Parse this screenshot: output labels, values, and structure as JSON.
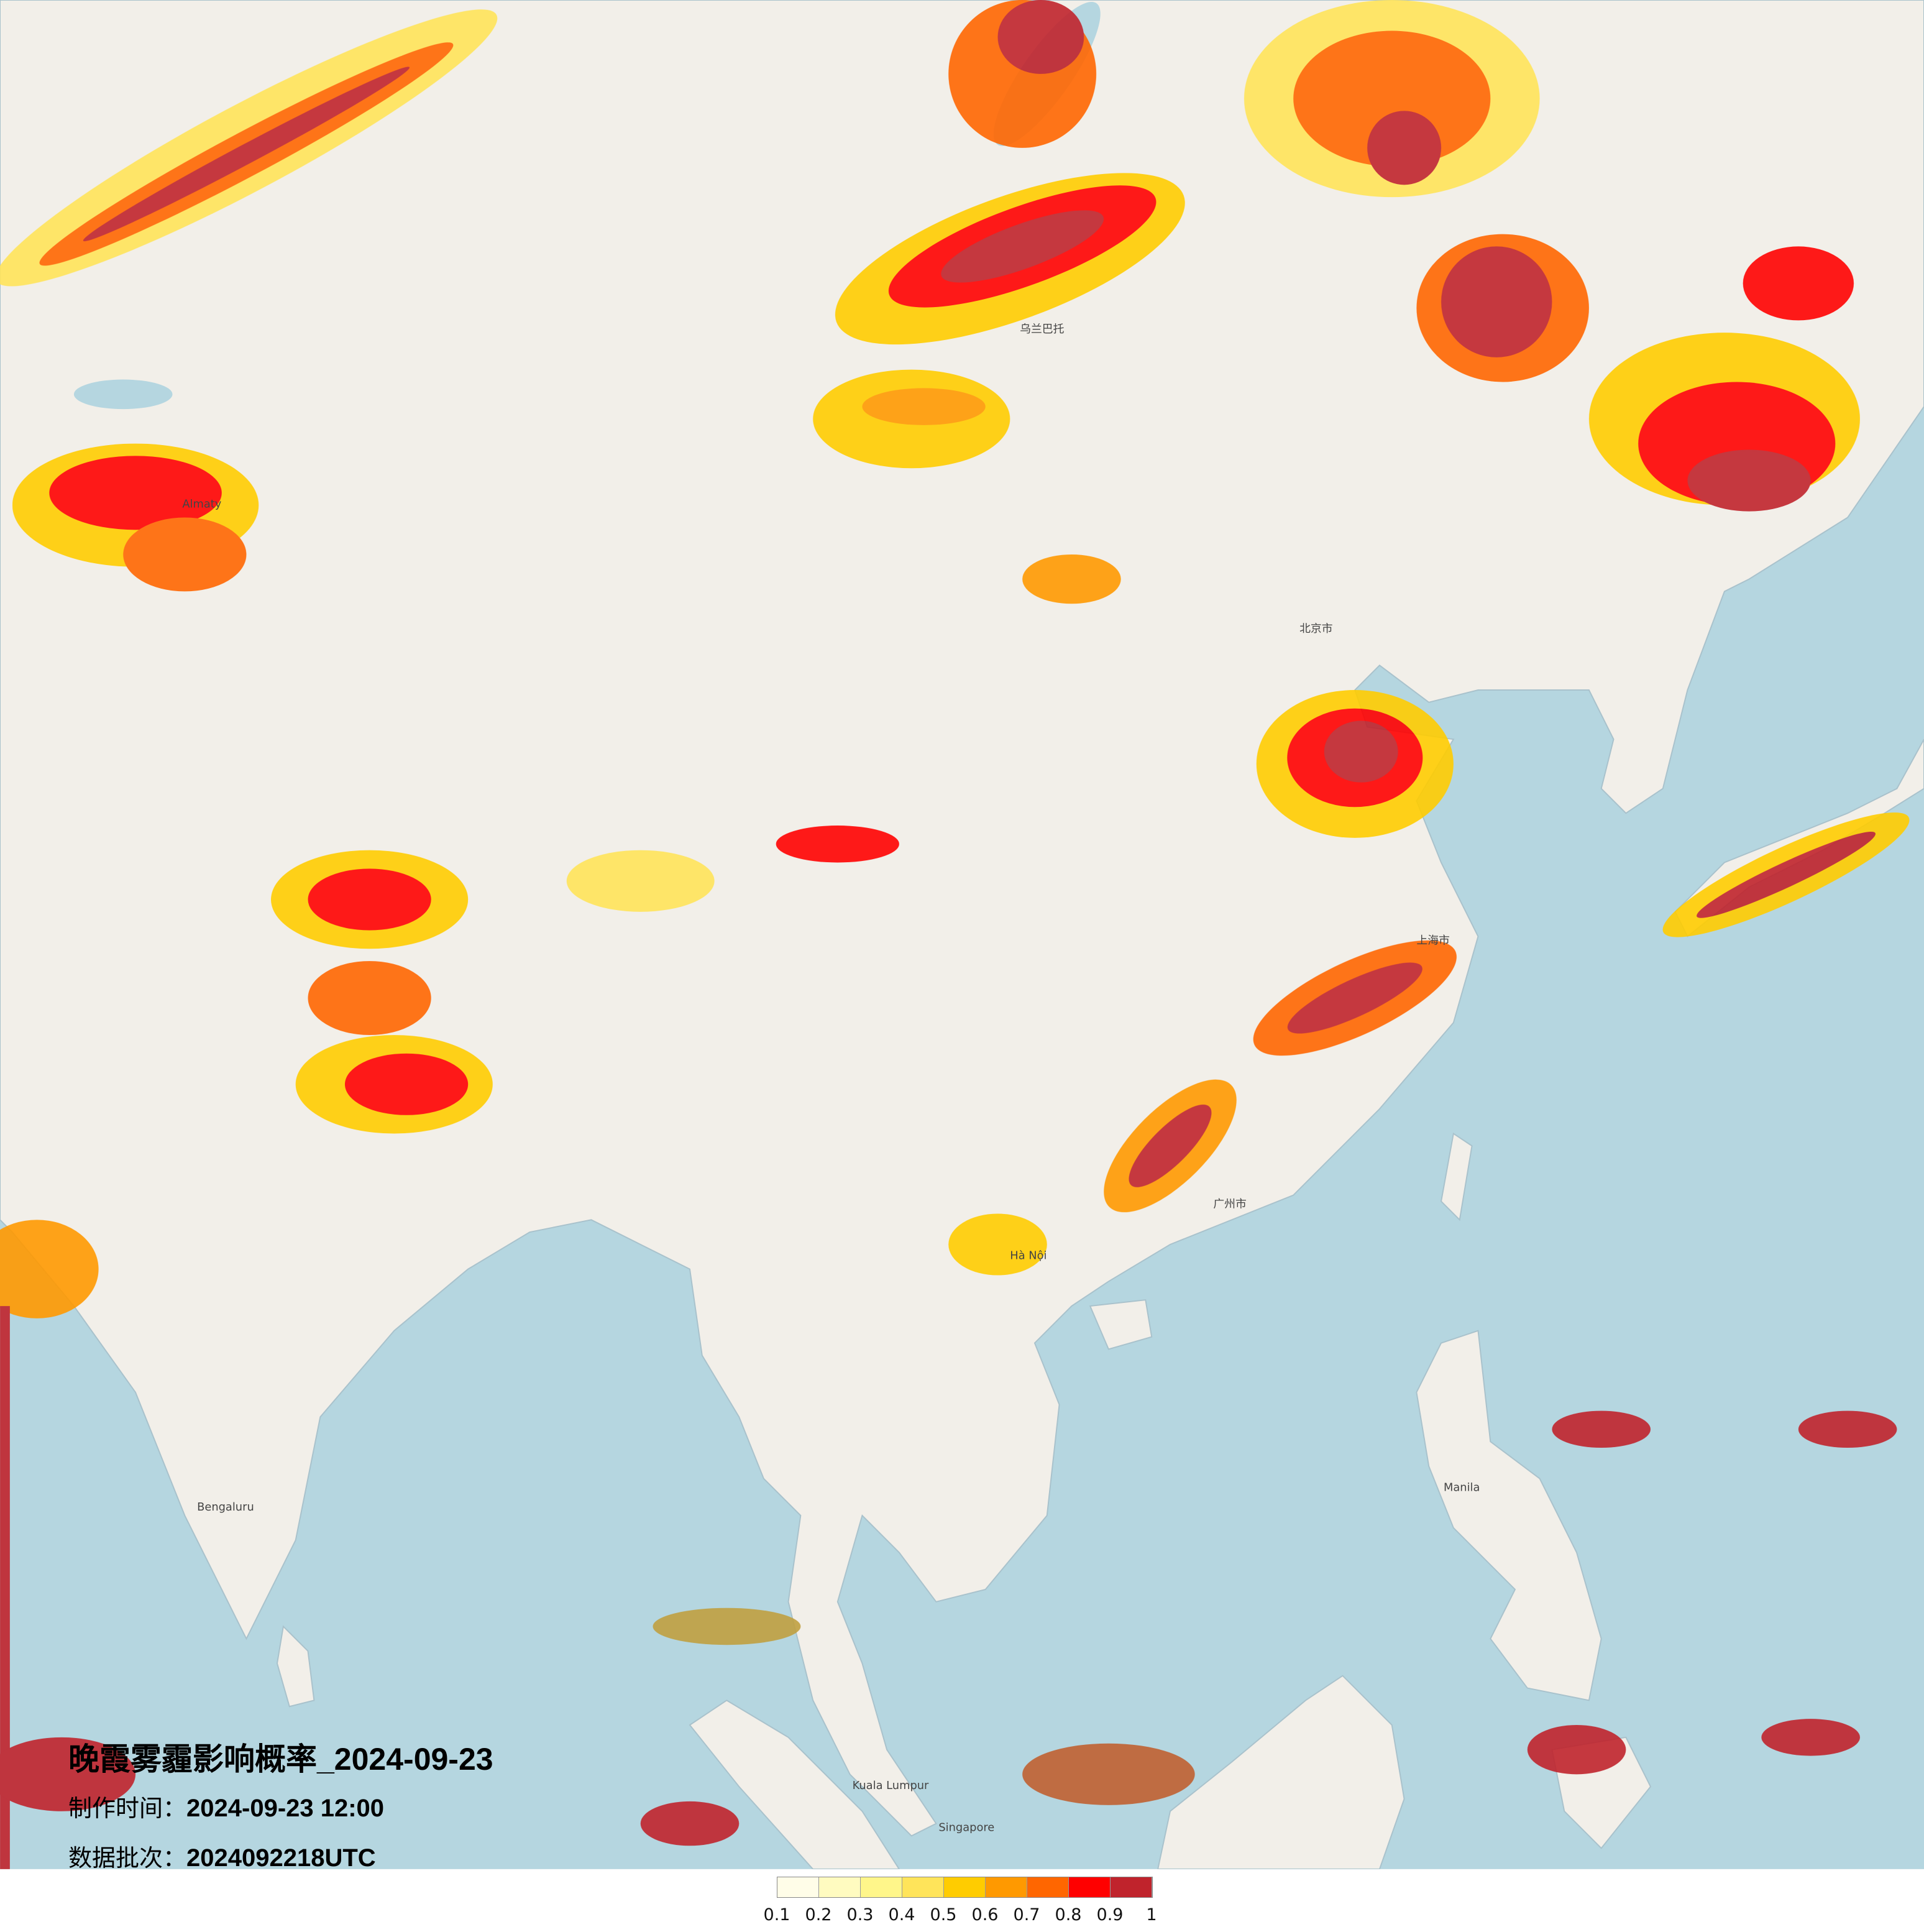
{
  "title": "晚霞雾霾影响概率_2024-09-23",
  "production_time": {
    "label": "制作时间：",
    "value": "2024-09-23 12:00"
  },
  "data_batch": {
    "label": "数据批次：",
    "value": "2024092218UTC"
  },
  "legend": {
    "colors": [
      "#fffde8",
      "#fffbc0",
      "#fff68a",
      "#ffe45a",
      "#ffcc00",
      "#ff9900",
      "#ff6600",
      "#ff0000",
      "#c0232c"
    ],
    "labels": [
      "0.1",
      "0.2",
      "0.3",
      "0.4",
      "0.5",
      "0.6",
      "0.7",
      "0.8",
      "0.9",
      "1"
    ]
  },
  "map": {
    "ocean_color": "#b5d6e0",
    "land_color": "#f2efe9",
    "cities": [
      "乌兰巴托",
      "北京市",
      "上海市",
      "广州市",
      "Hà Nội",
      "Bengaluru",
      "Manila",
      "Kuala Lumpur",
      "Singapore",
      "Almaty"
    ]
  }
}
